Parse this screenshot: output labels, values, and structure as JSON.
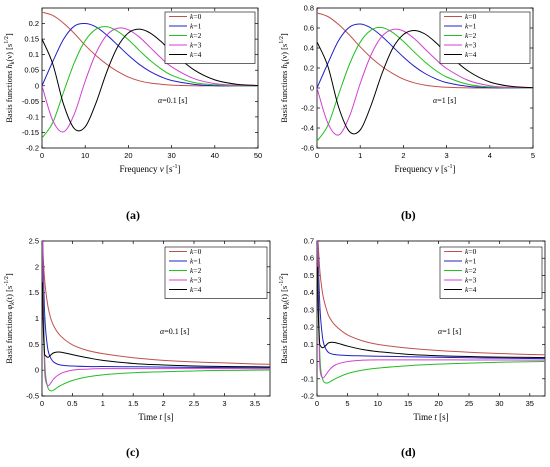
{
  "chart_data": [
    {
      "type": "line",
      "caption": "(a)",
      "ylabel_base": "Basis functions",
      "ylabel_func": "h",
      "ylabel_sub": "k",
      "ylabel_arg": "(ν)",
      "ylabel_unit": "[s",
      "ylabel_exp": "1/2",
      "ylabel_close": "]",
      "xlabel_word": "Frequency",
      "xlabel_var": "ν",
      "xlabel_unit": "[s",
      "xlabel_exp": "-1",
      "xlabel_close": "]",
      "annotation": "α=0.1 [s]",
      "xlim": [
        0,
        50
      ],
      "ylim": [
        -0.2,
        0.25
      ],
      "xticks": [
        "0",
        "10",
        "20",
        "30",
        "40",
        "50"
      ],
      "yticks": [
        "-0.2",
        "-0.15",
        "-0.1",
        "-0.05",
        "0",
        "0.05",
        "0.1",
        "0.15",
        "0.2"
      ],
      "legend": [
        "k=0",
        "k=1",
        "k=2",
        "k=3",
        "k=4"
      ],
      "series": [
        {
          "name": "k=0",
          "x": [
            0,
            2.5,
            5,
            7.5,
            10,
            12.5,
            15,
            17.5,
            20,
            22.5,
            25,
            27.5,
            30,
            35,
            40,
            45,
            50
          ],
          "y": [
            0.237,
            0.226,
            0.201,
            0.168,
            0.13,
            0.097,
            0.069,
            0.046,
            0.028,
            0.016,
            0.009,
            0.005,
            0.002,
            0.0,
            0.0,
            0.0,
            0.0
          ]
        },
        {
          "name": "k=1",
          "x": [
            0,
            2.5,
            5,
            7.5,
            10,
            12.5,
            15,
            17.5,
            20,
            22.5,
            25,
            27.5,
            30,
            35,
            40,
            45,
            50
          ],
          "y": [
            0.0,
            0.078,
            0.15,
            0.192,
            0.2,
            0.189,
            0.163,
            0.131,
            0.098,
            0.069,
            0.046,
            0.029,
            0.017,
            0.005,
            0.0,
            0.0,
            0.0
          ]
        },
        {
          "name": "k=2",
          "x": [
            0,
            2.5,
            5,
            7.5,
            10,
            12.5,
            15,
            17.5,
            20,
            22.5,
            25,
            27.5,
            30,
            35,
            40,
            45,
            50
          ],
          "y": [
            -0.168,
            -0.118,
            -0.02,
            0.075,
            0.145,
            0.182,
            0.19,
            0.175,
            0.148,
            0.114,
            0.082,
            0.055,
            0.034,
            0.011,
            0.003,
            0.0,
            0.0
          ]
        },
        {
          "name": "k=3",
          "x": [
            0,
            2.5,
            5,
            7.5,
            10,
            12.5,
            15,
            17.5,
            20,
            22.5,
            25,
            27.5,
            30,
            35,
            40,
            45,
            50
          ],
          "y": [
            0.0,
            -0.112,
            -0.148,
            -0.09,
            0.015,
            0.105,
            0.163,
            0.185,
            0.18,
            0.157,
            0.124,
            0.09,
            0.061,
            0.024,
            0.007,
            0.002,
            0.0
          ]
        },
        {
          "name": "k=4",
          "x": [
            0,
            2.5,
            5,
            7.5,
            10,
            12.5,
            15,
            17.5,
            20,
            22.5,
            25,
            27.5,
            30,
            35,
            40,
            45,
            50
          ],
          "y": [
            0.15,
            0.07,
            -0.06,
            -0.138,
            -0.132,
            -0.055,
            0.045,
            0.125,
            0.17,
            0.182,
            0.17,
            0.143,
            0.11,
            0.053,
            0.019,
            0.005,
            0.001
          ]
        }
      ]
    },
    {
      "type": "line",
      "caption": "(b)",
      "ylabel_base": "Basis functions",
      "ylabel_func": "h",
      "ylabel_sub": "k",
      "ylabel_arg": "(ν)",
      "ylabel_unit": "[s",
      "ylabel_exp": "1/2",
      "ylabel_close": "]",
      "xlabel_word": "Frequency",
      "xlabel_var": "ν",
      "xlabel_unit": "[s",
      "xlabel_exp": "-1",
      "xlabel_close": "]",
      "annotation": "α=1 [s]",
      "xlim": [
        0,
        5
      ],
      "ylim": [
        -0.6,
        0.8
      ],
      "xticks": [
        "0",
        "1",
        "2",
        "3",
        "4",
        "5"
      ],
      "yticks": [
        "-0.6",
        "-0.4",
        "-0.2",
        "0",
        "0.2",
        "0.4",
        "0.6",
        "0.8"
      ],
      "legend": [
        "k=0",
        "k=1",
        "k=2",
        "k=3",
        "k=4"
      ],
      "series": [
        {
          "name": "k=0",
          "x": [
            0,
            0.25,
            0.5,
            0.75,
            1,
            1.25,
            1.5,
            1.75,
            2,
            2.25,
            2.5,
            2.75,
            3,
            3.5,
            4,
            4.5,
            5
          ],
          "y": [
            0.751,
            0.715,
            0.635,
            0.53,
            0.412,
            0.305,
            0.216,
            0.146,
            0.089,
            0.052,
            0.029,
            0.015,
            0.007,
            0.001,
            0.0,
            0.0,
            0.0
          ]
        },
        {
          "name": "k=1",
          "x": [
            0,
            0.25,
            0.5,
            0.75,
            1,
            1.25,
            1.5,
            1.75,
            2,
            2.25,
            2.5,
            2.75,
            3,
            3.5,
            4,
            4.5,
            5
          ],
          "y": [
            0.0,
            0.245,
            0.475,
            0.608,
            0.64,
            0.6,
            0.518,
            0.414,
            0.31,
            0.218,
            0.145,
            0.092,
            0.054,
            0.016,
            0.004,
            0.001,
            0.0
          ]
        },
        {
          "name": "k=2",
          "x": [
            0,
            0.25,
            0.5,
            0.75,
            1,
            1.25,
            1.5,
            1.75,
            2,
            2.25,
            2.5,
            2.75,
            3,
            3.5,
            4,
            4.5,
            5
          ],
          "y": [
            -0.531,
            -0.375,
            -0.065,
            0.235,
            0.458,
            0.578,
            0.605,
            0.556,
            0.466,
            0.36,
            0.26,
            0.175,
            0.11,
            0.036,
            0.01,
            0.002,
            0.0
          ]
        },
        {
          "name": "k=3",
          "x": [
            0,
            0.25,
            0.5,
            0.75,
            1,
            1.25,
            1.5,
            1.75,
            2,
            2.25,
            2.5,
            2.75,
            3,
            3.5,
            4,
            4.5,
            5
          ],
          "y": [
            0.0,
            -0.35,
            -0.47,
            -0.285,
            0.045,
            0.33,
            0.515,
            0.585,
            0.57,
            0.495,
            0.39,
            0.286,
            0.195,
            0.076,
            0.023,
            0.006,
            0.001
          ]
        },
        {
          "name": "k=4",
          "x": [
            0,
            0.25,
            0.5,
            0.75,
            1,
            1.25,
            1.5,
            1.75,
            2,
            2.25,
            2.5,
            2.75,
            3,
            3.5,
            4,
            4.5,
            5
          ],
          "y": [
            0.46,
            0.22,
            -0.19,
            -0.435,
            -0.42,
            -0.175,
            0.14,
            0.395,
            0.535,
            0.575,
            0.54,
            0.455,
            0.35,
            0.17,
            0.06,
            0.016,
            0.003
          ]
        }
      ]
    },
    {
      "type": "line",
      "caption": "(c)",
      "ylabel_base": "Basis functions",
      "ylabel_func": "φ",
      "ylabel_sub": "k",
      "ylabel_arg": "(t)",
      "ylabel_unit": "[s",
      "ylabel_exp": "-1/2",
      "ylabel_close": "]",
      "xlabel_word": "Time",
      "xlabel_var": "t",
      "xlabel_unit": "[s]",
      "xlabel_exp": "",
      "xlabel_close": "",
      "annotation": "α=0.1 [s]",
      "xlim": [
        0,
        3.75
      ],
      "ylim": [
        -0.5,
        2.5
      ],
      "xticks": [
        "0",
        "0.5",
        "1",
        "1.5",
        "2",
        "2.5",
        "3",
        "3.5"
      ],
      "yticks": [
        "-0.5",
        "0",
        "0.5",
        "1",
        "1.5",
        "2",
        "2.5"
      ],
      "legend": [
        "k=0",
        "k=1",
        "k=2",
        "k=3",
        "k=4"
      ],
      "series": [
        {
          "name": "k=0",
          "x": [
            0.01,
            0.02,
            0.04,
            0.06,
            0.1,
            0.15,
            0.2,
            0.3,
            0.5,
            0.75,
            1,
            1.5,
            2,
            2.5,
            3,
            3.5,
            3.75
          ],
          "y": [
            2.5,
            2.2,
            1.8,
            1.55,
            1.22,
            0.98,
            0.84,
            0.67,
            0.49,
            0.38,
            0.32,
            0.24,
            0.19,
            0.16,
            0.14,
            0.12,
            0.115
          ]
        },
        {
          "name": "k=1",
          "x": [
            0.01,
            0.02,
            0.04,
            0.06,
            0.1,
            0.15,
            0.2,
            0.3,
            0.5,
            0.75,
            1,
            1.5,
            2,
            2.5,
            3,
            3.5,
            3.75
          ],
          "y": [
            2.5,
            2.0,
            1.2,
            0.78,
            0.38,
            0.22,
            0.15,
            0.1,
            0.08,
            0.07,
            0.07,
            0.065,
            0.06,
            0.055,
            0.05,
            0.048,
            0.046
          ]
        },
        {
          "name": "k=2",
          "x": [
            0.01,
            0.02,
            0.04,
            0.06,
            0.1,
            0.15,
            0.2,
            0.3,
            0.5,
            0.75,
            1,
            1.5,
            2,
            2.5,
            3,
            3.5,
            3.75
          ],
          "y": [
            2.5,
            1.7,
            0.4,
            -0.1,
            -0.35,
            -0.4,
            -0.38,
            -0.3,
            -0.2,
            -0.13,
            -0.09,
            -0.05,
            -0.03,
            -0.015,
            -0.005,
            0.0,
            0.002
          ]
        },
        {
          "name": "k=3",
          "x": [
            0.01,
            0.02,
            0.04,
            0.06,
            0.1,
            0.15,
            0.2,
            0.3,
            0.5,
            0.75,
            1,
            1.5,
            2,
            2.5,
            3,
            3.5,
            3.75
          ],
          "y": [
            2.5,
            1.4,
            0.1,
            -0.2,
            -0.3,
            -0.24,
            -0.16,
            -0.07,
            0.0,
            0.02,
            0.03,
            0.03,
            0.03,
            0.03,
            0.03,
            0.028,
            0.027
          ]
        },
        {
          "name": "k=4",
          "x": [
            0.01,
            0.02,
            0.04,
            0.06,
            0.1,
            0.15,
            0.2,
            0.3,
            0.5,
            0.75,
            1,
            1.5,
            2,
            2.5,
            3,
            3.5,
            3.75
          ],
          "y": [
            1.7,
            0.9,
            0.35,
            0.28,
            0.25,
            0.3,
            0.34,
            0.35,
            0.3,
            0.24,
            0.19,
            0.13,
            0.1,
            0.08,
            0.07,
            0.065,
            0.062
          ]
        }
      ]
    },
    {
      "type": "line",
      "caption": "(d)",
      "ylabel_base": "Basis functions",
      "ylabel_func": "φ",
      "ylabel_sub": "k",
      "ylabel_arg": "(t)",
      "ylabel_unit": "[s",
      "ylabel_exp": "-1/2",
      "ylabel_close": "]",
      "xlabel_word": "Time",
      "xlabel_var": "t",
      "xlabel_unit": "[s]",
      "xlabel_exp": "",
      "xlabel_close": "",
      "annotation": "α=1 [s]",
      "xlim": [
        0,
        37.5
      ],
      "ylim": [
        -0.2,
        0.7
      ],
      "xticks": [
        "0",
        "5",
        "10",
        "15",
        "20",
        "25",
        "30",
        "35"
      ],
      "yticks": [
        "-0.2",
        "-0.1",
        "0",
        "0.1",
        "0.2",
        "0.3",
        "0.4",
        "0.5",
        "0.6",
        "0.7"
      ],
      "legend": [
        "k=0",
        "k=1",
        "k=2",
        "k=3",
        "k=4"
      ],
      "series": [
        {
          "name": "k=0",
          "x": [
            0.1,
            0.2,
            0.4,
            0.6,
            1,
            1.5,
            2,
            3,
            5,
            7.5,
            10,
            15,
            20,
            25,
            30,
            35,
            37.5
          ],
          "y": [
            0.7,
            0.68,
            0.56,
            0.48,
            0.38,
            0.31,
            0.26,
            0.21,
            0.155,
            0.12,
            0.1,
            0.078,
            0.064,
            0.054,
            0.047,
            0.041,
            0.039
          ]
        },
        {
          "name": "k=1",
          "x": [
            0.1,
            0.2,
            0.4,
            0.6,
            1,
            1.5,
            2,
            3,
            5,
            7.5,
            10,
            15,
            20,
            25,
            30,
            35,
            37.5
          ],
          "y": [
            0.7,
            0.6,
            0.38,
            0.25,
            0.12,
            0.07,
            0.05,
            0.04,
            0.035,
            0.033,
            0.031,
            0.028,
            0.025,
            0.022,
            0.02,
            0.018,
            0.017
          ]
        },
        {
          "name": "k=2",
          "x": [
            0.1,
            0.2,
            0.4,
            0.6,
            1,
            1.5,
            2,
            3,
            5,
            7.5,
            10,
            15,
            20,
            25,
            30,
            35,
            37.5
          ],
          "y": [
            0.7,
            0.5,
            0.12,
            -0.04,
            -0.11,
            -0.125,
            -0.12,
            -0.1,
            -0.07,
            -0.05,
            -0.038,
            -0.024,
            -0.015,
            -0.009,
            -0.004,
            -0.001,
            0.0
          ]
        },
        {
          "name": "k=3",
          "x": [
            0.1,
            0.2,
            0.4,
            0.6,
            1,
            1.5,
            2,
            3,
            5,
            7.5,
            10,
            15,
            20,
            25,
            30,
            35,
            37.5
          ],
          "y": [
            0.7,
            0.42,
            0.03,
            -0.07,
            -0.095,
            -0.075,
            -0.05,
            -0.02,
            0.0,
            0.008,
            0.01,
            0.01,
            0.01,
            0.009,
            0.009,
            0.008,
            0.008
          ]
        },
        {
          "name": "k=4",
          "x": [
            0.1,
            0.2,
            0.4,
            0.6,
            1,
            1.5,
            2,
            3,
            5,
            7.5,
            10,
            15,
            20,
            25,
            30,
            35,
            37.5
          ],
          "y": [
            0.55,
            0.3,
            0.12,
            0.09,
            0.08,
            0.095,
            0.11,
            0.11,
            0.09,
            0.07,
            0.058,
            0.042,
            0.034,
            0.029,
            0.026,
            0.024,
            0.023
          ]
        }
      ]
    }
  ],
  "colors": {
    "series": [
      "#c0504d",
      "#2020c8",
      "#20c020",
      "#d040d0",
      "#000000"
    ],
    "axis": "#000000",
    "grid": "#e0e0e0"
  }
}
